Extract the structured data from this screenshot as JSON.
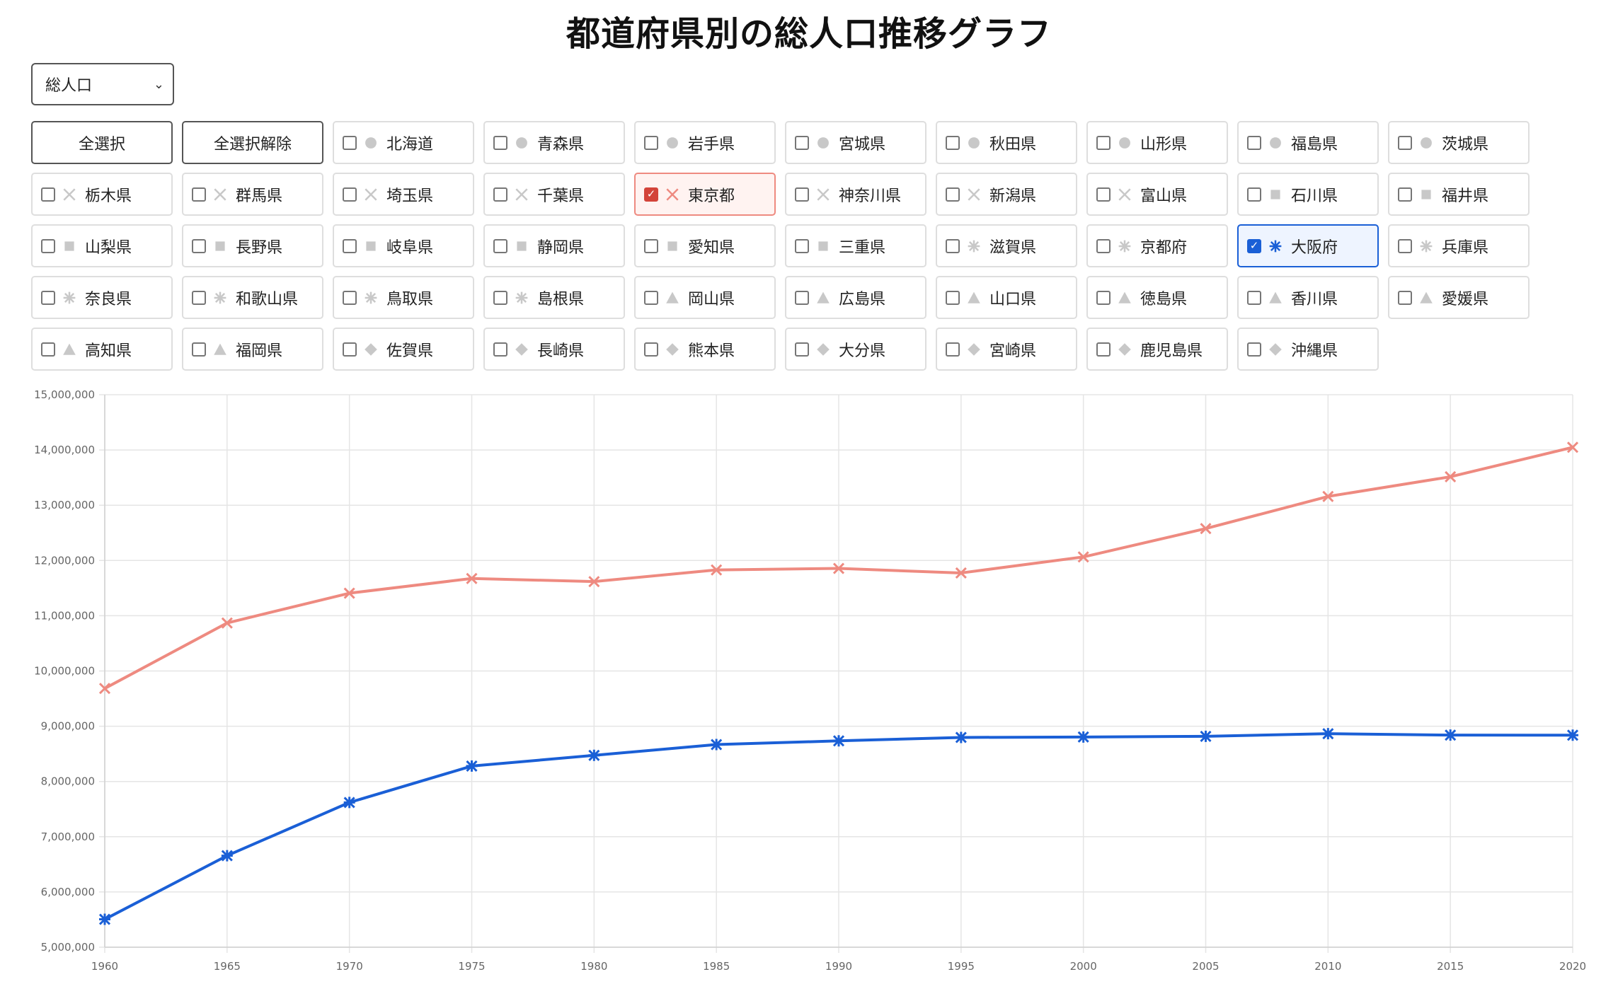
{
  "title": "都道府県別の総人口推移グラフ",
  "select": {
    "value": "総人口"
  },
  "buttons": {
    "select_all": "全選択",
    "deselect_all": "全選択解除"
  },
  "prefectures": [
    {
      "name": "北海道",
      "marker": "circle",
      "checked": false
    },
    {
      "name": "青森県",
      "marker": "circle",
      "checked": false
    },
    {
      "name": "岩手県",
      "marker": "circle",
      "checked": false
    },
    {
      "name": "宮城県",
      "marker": "circle",
      "checked": false
    },
    {
      "name": "秋田県",
      "marker": "circle",
      "checked": false
    },
    {
      "name": "山形県",
      "marker": "circle",
      "checked": false
    },
    {
      "name": "福島県",
      "marker": "circle",
      "checked": false
    },
    {
      "name": "茨城県",
      "marker": "circle",
      "checked": false
    },
    {
      "name": "栃木県",
      "marker": "cross",
      "checked": false
    },
    {
      "name": "群馬県",
      "marker": "cross",
      "checked": false
    },
    {
      "name": "埼玉県",
      "marker": "cross",
      "checked": false
    },
    {
      "name": "千葉県",
      "marker": "cross",
      "checked": false
    },
    {
      "name": "東京都",
      "marker": "cross",
      "checked": true,
      "color": "#ee8a80"
    },
    {
      "name": "神奈川県",
      "marker": "cross",
      "checked": false
    },
    {
      "name": "新潟県",
      "marker": "cross",
      "checked": false
    },
    {
      "name": "富山県",
      "marker": "cross",
      "checked": false
    },
    {
      "name": "石川県",
      "marker": "square",
      "checked": false
    },
    {
      "name": "福井県",
      "marker": "square",
      "checked": false
    },
    {
      "name": "山梨県",
      "marker": "square",
      "checked": false
    },
    {
      "name": "長野県",
      "marker": "square",
      "checked": false
    },
    {
      "name": "岐阜県",
      "marker": "square",
      "checked": false
    },
    {
      "name": "静岡県",
      "marker": "square",
      "checked": false
    },
    {
      "name": "愛知県",
      "marker": "square",
      "checked": false
    },
    {
      "name": "三重県",
      "marker": "square",
      "checked": false
    },
    {
      "name": "滋賀県",
      "marker": "asterisk",
      "checked": false
    },
    {
      "name": "京都府",
      "marker": "asterisk",
      "checked": false
    },
    {
      "name": "大阪府",
      "marker": "asterisk",
      "checked": true,
      "color": "#1a5fd6"
    },
    {
      "name": "兵庫県",
      "marker": "asterisk",
      "checked": false
    },
    {
      "name": "奈良県",
      "marker": "asterisk",
      "checked": false
    },
    {
      "name": "和歌山県",
      "marker": "asterisk",
      "checked": false
    },
    {
      "name": "鳥取県",
      "marker": "asterisk",
      "checked": false
    },
    {
      "name": "島根県",
      "marker": "asterisk",
      "checked": false
    },
    {
      "name": "岡山県",
      "marker": "triangle",
      "checked": false
    },
    {
      "name": "広島県",
      "marker": "triangle",
      "checked": false
    },
    {
      "name": "山口県",
      "marker": "triangle",
      "checked": false
    },
    {
      "name": "徳島県",
      "marker": "triangle",
      "checked": false
    },
    {
      "name": "香川県",
      "marker": "triangle",
      "checked": false
    },
    {
      "name": "愛媛県",
      "marker": "triangle",
      "checked": false
    },
    {
      "name": "高知県",
      "marker": "triangle",
      "checked": false
    },
    {
      "name": "福岡県",
      "marker": "triangle",
      "checked": false
    },
    {
      "name": "佐賀県",
      "marker": "diamond",
      "checked": false
    },
    {
      "name": "長崎県",
      "marker": "diamond",
      "checked": false
    },
    {
      "name": "熊本県",
      "marker": "diamond",
      "checked": false
    },
    {
      "name": "大分県",
      "marker": "diamond",
      "checked": false
    },
    {
      "name": "宮崎県",
      "marker": "diamond",
      "checked": false
    },
    {
      "name": "鹿児島県",
      "marker": "diamond",
      "checked": false
    },
    {
      "name": "沖縄県",
      "marker": "diamond",
      "checked": false
    }
  ],
  "colors": {
    "inactive_marker": "#c8c8c8",
    "grid": "#e5e5e5"
  },
  "chart_data": {
    "type": "line",
    "x": [
      1960,
      1965,
      1970,
      1975,
      1980,
      1985,
      1990,
      1995,
      2000,
      2005,
      2010,
      2015,
      2020
    ],
    "ylim": [
      5000000,
      15000000
    ],
    "yticks": [
      "5,000,000",
      "6,000,000",
      "7,000,000",
      "8,000,000",
      "9,000,000",
      "10,000,000",
      "11,000,000",
      "12,000,000",
      "13,000,000",
      "14,000,000",
      "15,000,000"
    ],
    "grid": true,
    "series": [
      {
        "color": "#ee8a80",
        "marker": "cross",
        "values": [
          9684000,
          10869000,
          11408000,
          11674000,
          11618000,
          11829000,
          11856000,
          11774000,
          12064000,
          12577000,
          13159000,
          13515000,
          14048000
        ]
      },
      {
        "color": "#1a5fd6",
        "marker": "asterisk",
        "values": [
          5505000,
          6657000,
          7620000,
          8279000,
          8473000,
          8668000,
          8735000,
          8797000,
          8805000,
          8817000,
          8865000,
          8839000,
          8838000
        ]
      }
    ]
  }
}
